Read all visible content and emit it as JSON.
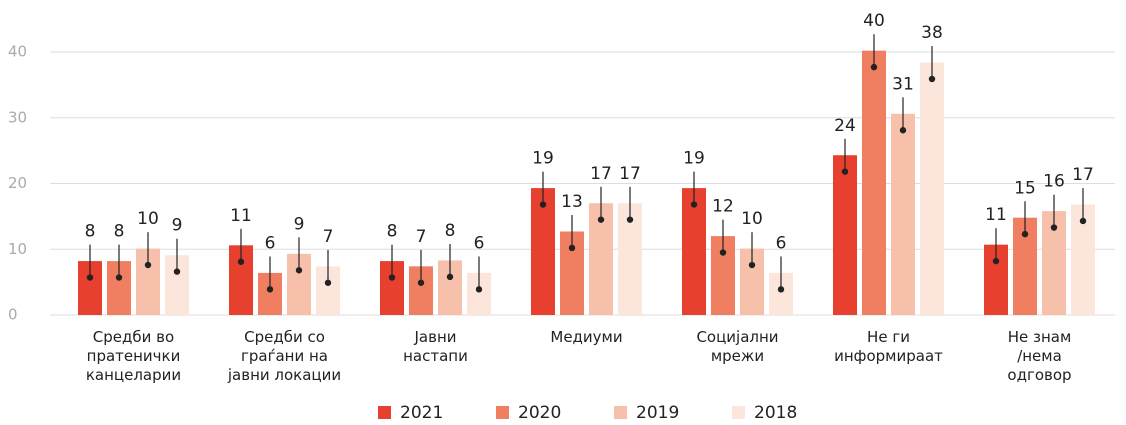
{
  "chart_data": {
    "type": "bar",
    "categories": [
      "Средби во\nпратенички\nканцеларии",
      "Средби со\nграѓани на\nјавни локации",
      "Јавни\nнастапи",
      "Медиуми",
      "Социјални\nмрежи",
      "Не ги\nинформираат",
      "Не знам\n/нема\nодговор"
    ],
    "series": [
      {
        "name": "2021",
        "color": "#e8402f",
        "values": [
          8.2,
          10.6,
          8.2,
          19.3,
          19.3,
          24.3,
          10.7
        ],
        "value_labels": [
          "8",
          "11",
          "8",
          "19",
          "19",
          "24",
          "11"
        ],
        "errors": [
          2.5,
          2.5,
          2.5,
          2.5,
          2.5,
          2.5,
          2.5
        ]
      },
      {
        "name": "2020",
        "color": "#ef7f60",
        "values": [
          8.2,
          6.4,
          7.4,
          12.7,
          12.0,
          40.2,
          14.8
        ],
        "value_labels": [
          "8",
          "6",
          "7",
          "13",
          "12",
          "40",
          "15"
        ],
        "errors": [
          2.5,
          2.5,
          2.5,
          2.5,
          2.5,
          2.5,
          2.5
        ]
      },
      {
        "name": "2019",
        "color": "#f7c0aa",
        "values": [
          10.1,
          9.3,
          8.3,
          17.0,
          10.1,
          30.6,
          15.8
        ],
        "value_labels": [
          "10",
          "9",
          "8",
          "17",
          "10",
          "31",
          "16"
        ],
        "errors": [
          2.5,
          2.5,
          2.5,
          2.5,
          2.5,
          2.5,
          2.5
        ]
      },
      {
        "name": "2018",
        "color": "#fce6dc",
        "values": [
          9.1,
          7.4,
          6.4,
          17.0,
          6.4,
          38.4,
          16.8
        ],
        "value_labels": [
          "9",
          "7",
          "6",
          "17",
          "6",
          "38",
          "17"
        ],
        "errors": [
          2.5,
          2.5,
          2.5,
          2.5,
          2.5,
          2.5,
          2.5
        ]
      }
    ],
    "ylim": [
      0,
      40
    ],
    "yticks": [
      0,
      10,
      20,
      30,
      40
    ],
    "grid": true,
    "legend": "bottom"
  }
}
